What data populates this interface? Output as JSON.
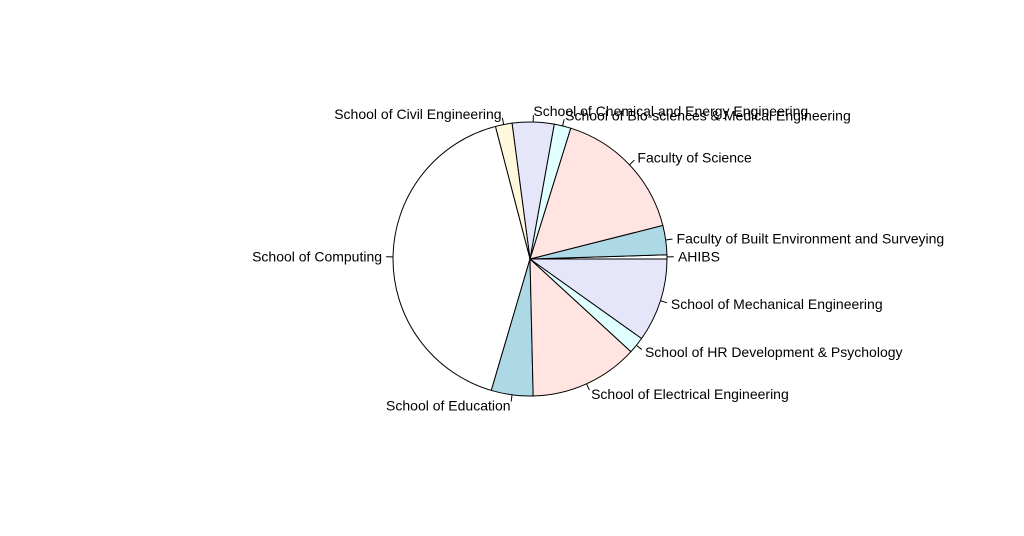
{
  "chart_data": {
    "type": "pie",
    "title": "",
    "direction": "counter-clockwise",
    "start_angle_deg": 0,
    "slices": [
      {
        "label": "AHIBS",
        "value": 0.5,
        "color": "#ffffff"
      },
      {
        "label": "Faculty of Built Environment and Surveying",
        "value": 3.5,
        "color": "#add8e6"
      },
      {
        "label": "Faculty of Science",
        "value": 16.5,
        "color": "#ffe4e1"
      },
      {
        "label": "School of Bio-sciences & Medical Engineering",
        "value": 2.0,
        "color": "#e0ffff"
      },
      {
        "label": "School of Chemical and Energy Engineering",
        "value": 5.0,
        "color": "#e6e6fa"
      },
      {
        "label": "School of Civil Engineering",
        "value": 2.0,
        "color": "#fff8dc"
      },
      {
        "label": "School of Computing",
        "value": 42.0,
        "color": "#ffffff"
      },
      {
        "label": "School of Education",
        "value": 5.0,
        "color": "#add8e6"
      },
      {
        "label": "School of Electrical Engineering",
        "value": 13.0,
        "color": "#ffe4e1"
      },
      {
        "label": "School of HR Development & Psychology",
        "value": 2.0,
        "color": "#e0ffff"
      },
      {
        "label": "School of Mechanical Engineering",
        "value": 10.0,
        "color": "#e6e6fa"
      }
    ]
  }
}
